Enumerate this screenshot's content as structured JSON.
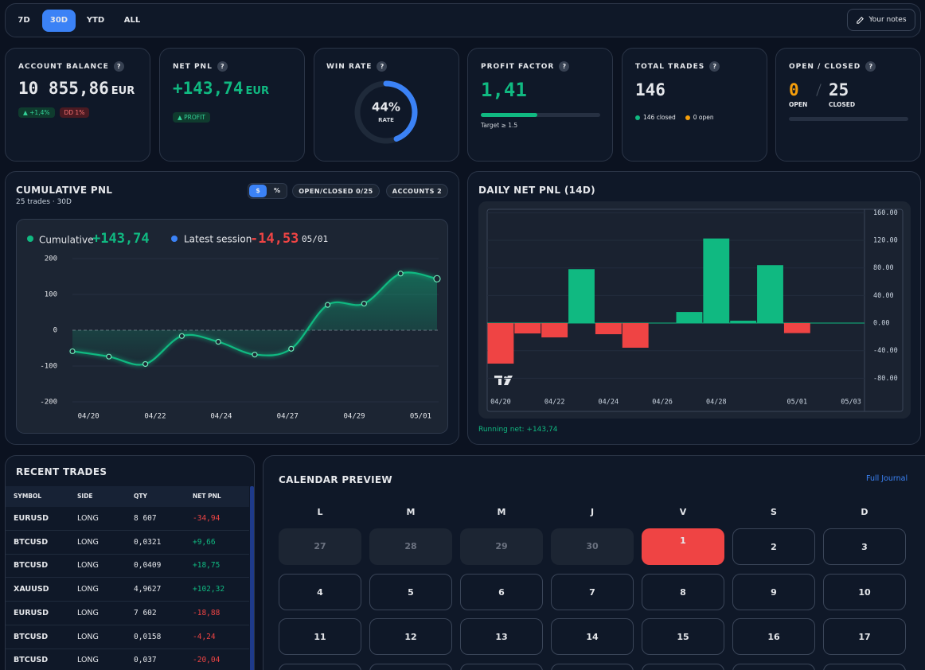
{
  "help_icon": "?",
  "range_tabs": [
    "7D",
    "30D",
    "YTD",
    "ALL"
  ],
  "notes_button": "Your notes",
  "stats": {
    "account_balance": {
      "title": "ACCOUNT BALANCE",
      "value": "10 855,86",
      "unit": "EUR",
      "change": "▲ +1,4%",
      "drawdown": "DD 1%"
    },
    "net_pnl": {
      "title": "NET PNL",
      "value": "+143,74",
      "unit": "EUR",
      "badge": "▲ PROFIT"
    },
    "win_rate": {
      "title": "WIN RATE",
      "value": 44,
      "value_label": "44%",
      "caption": "RATE",
      "color": "#3b82f6"
    },
    "profit_factor": {
      "title": "PROFIT FACTOR",
      "value": 1.41,
      "value_label": "1,41",
      "bar_lim": [
        0,
        3
      ],
      "target": "Target ≥ 1.5"
    },
    "total_trades": {
      "title": "TOTAL TRADES",
      "value": "146",
      "closed": "146 closed",
      "open": "0 open"
    },
    "open_closed": {
      "title": "OPEN / CLOSED",
      "open": "0",
      "open_label": "OPEN",
      "closed": "25",
      "closed_label": "CLOSED"
    }
  },
  "cumulative_pnl": {
    "title": "CUMULATIVE PNL",
    "subtitle": "25 trades · 30D",
    "toggles": [
      "$",
      "%"
    ],
    "filters": [
      "OPEN/CLOSED 0/25",
      "ACCOUNTS 2"
    ],
    "legend": {
      "cumulative": "Cumulative",
      "cumulative_value": "+143,74",
      "latest": "Latest session",
      "latest_value": "-14,53",
      "latest_date": "05/01"
    },
    "chart": {
      "type": "line",
      "values": [
        -58.7,
        -73.7,
        -94.4,
        -16.2,
        -32.3,
        -68,
        -51.9,
        70.77,
        74.27,
        158.27,
        143.74
      ],
      "color": "#10b981",
      "xlim": [
        0,
        10
      ],
      "xticks": [
        {
          "value": 0.44,
          "label": "04/20"
        },
        {
          "value": 2.27,
          "label": "04/22"
        },
        {
          "value": 4.08,
          "label": "04/24"
        },
        {
          "value": 5.9,
          "label": "04/27"
        },
        {
          "value": 7.73,
          "label": "04/29"
        },
        {
          "value": 9.55,
          "label": "05/01"
        }
      ],
      "ylim": [
        -200,
        200
      ],
      "yticks": [
        200,
        100,
        0,
        -100,
        -200
      ],
      "grid": true
    }
  },
  "daily_pnl": {
    "title": "DAILY NET PNL (14D)",
    "chart": {
      "type": "bar",
      "categories": [
        "04/20",
        null,
        "04/22",
        null,
        "04/24",
        null,
        "04/26",
        null,
        "04/28",
        null,
        null,
        "05/01",
        null,
        "05/03"
      ],
      "values": [
        -58.7,
        -15,
        -20.7,
        78.2,
        -16.1,
        -35.7,
        0,
        16.1,
        122.67,
        3.5,
        84,
        -14.53,
        0,
        0
      ],
      "colors": {
        "positive": "#10b981",
        "negative": "#ef4444"
      },
      "ylim": [
        -98,
        165
      ],
      "yticks": [
        {
          "value": 160,
          "label": "160.00"
        },
        {
          "value": 120,
          "label": "120.00"
        },
        {
          "value": 80,
          "label": "80.00"
        },
        {
          "value": 40,
          "label": "40.00"
        },
        {
          "value": 0,
          "label": "0.00"
        },
        {
          "value": -40,
          "label": "-40.00"
        },
        {
          "value": -80,
          "label": "-80.00"
        }
      ],
      "grid": true
    },
    "footer": "Running net: +143,74"
  },
  "recent_trades": {
    "title": "RECENT TRADES",
    "columns": [
      "SYMBOL",
      "SIDE",
      "QTY",
      "NET PNL"
    ],
    "rows": [
      [
        "EURUSD",
        "LONG",
        "8 607",
        "-34,94"
      ],
      [
        "BTCUSD",
        "LONG",
        "0,0321",
        "+9,66"
      ],
      [
        "BTCUSD",
        "LONG",
        "0,0409",
        "+18,75"
      ],
      [
        "XAUUSD",
        "LONG",
        "4,9627",
        "+102,32"
      ],
      [
        "EURUSD",
        "LONG",
        "7 602",
        "-18,88"
      ],
      [
        "BTCUSD",
        "LONG",
        "0,0158",
        "-4,24"
      ],
      [
        "BTCUSD",
        "LONG",
        "0,037",
        "-20,04"
      ]
    ]
  },
  "calendar": {
    "title": "CALENDAR PREVIEW",
    "link": "Full Journal",
    "weekdays": [
      "L",
      "M",
      "M",
      "J",
      "V",
      "S",
      "D"
    ],
    "prev_month_days": [
      "27",
      "28",
      "29",
      "30"
    ],
    "days": [
      "1",
      "2",
      "3",
      "4",
      "5",
      "6",
      "7",
      "8",
      "9",
      "10",
      "11",
      "12",
      "13",
      "14",
      "15",
      "16",
      "17"
    ]
  }
}
